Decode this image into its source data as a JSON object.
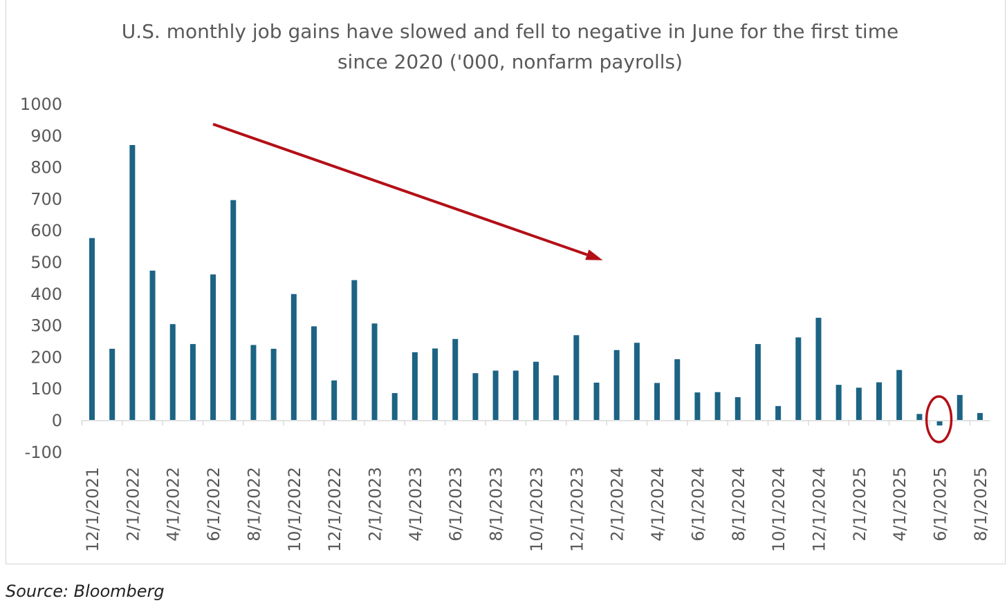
{
  "source": "Source: Bloomberg",
  "colors": {
    "bar": "#1c6384",
    "annotation": "#b30f16",
    "axis_text": "#595959",
    "axis_line": "#d9d9d9"
  },
  "chart_data": {
    "type": "bar",
    "title": "U.S. monthly job gains have slowed and fell to negative in June for the first time since 2020 ('000, nonfarm payrolls)",
    "title_lines": [
      "U.S. monthly job gains have slowed and fell to negative in June for the first time",
      "since 2020 ('000, nonfarm payrolls)"
    ],
    "xlabel": "",
    "ylabel": "",
    "ylim": [
      -100,
      1000
    ],
    "yticks": [
      1000,
      900,
      800,
      700,
      600,
      500,
      400,
      300,
      200,
      100,
      0,
      -100
    ],
    "grid": false,
    "legend": "none",
    "categories": [
      "12/1/2021",
      "1/1/2022",
      "2/1/2022",
      "3/1/2022",
      "4/1/2022",
      "5/1/2022",
      "6/1/2022",
      "7/1/2022",
      "8/1/2022",
      "9/1/2022",
      "10/1/2022",
      "11/1/2022",
      "12/1/2022",
      "1/1/2023",
      "2/1/2023",
      "3/1/2023",
      "4/1/2023",
      "5/1/2023",
      "6/1/2023",
      "7/1/2023",
      "8/1/2023",
      "9/1/2023",
      "10/1/2023",
      "11/1/2023",
      "12/1/2023",
      "1/1/2024",
      "2/1/2024",
      "3/1/2024",
      "4/1/2024",
      "5/1/2024",
      "6/1/2024",
      "7/1/2024",
      "8/1/2024",
      "9/1/2024",
      "10/1/2024",
      "11/1/2024",
      "12/1/2024",
      "1/1/2025",
      "2/1/2025",
      "3/1/2025",
      "4/1/2025",
      "5/1/2025",
      "6/1/2025",
      "7/1/2025",
      "8/1/2025"
    ],
    "tick_labels": [
      "12/1/2021",
      "2/1/2022",
      "4/1/2022",
      "6/1/2022",
      "8/1/2022",
      "10/1/2022",
      "12/1/2022",
      "2/1/2023",
      "4/1/2023",
      "6/1/2023",
      "8/1/2023",
      "10/1/2023",
      "12/1/2023",
      "2/1/2024",
      "4/1/2024",
      "6/1/2024",
      "8/1/2024",
      "10/1/2024",
      "12/1/2024",
      "2/1/2025",
      "4/1/2025",
      "6/1/2025",
      "8/1/2025"
    ],
    "values": [
      575,
      225,
      869,
      472,
      303,
      240,
      460,
      695,
      237,
      225,
      398,
      296,
      125,
      442,
      305,
      85,
      214,
      226,
      256,
      148,
      156,
      156,
      184,
      141,
      268,
      118,
      221,
      244,
      117,
      192,
      87,
      88,
      72,
      240,
      44,
      261,
      323,
      111,
      102,
      119,
      158,
      19,
      -13,
      79,
      22
    ],
    "annotations": [
      {
        "type": "trend-arrow",
        "from": {
          "x": "6/1/2022",
          "y": 935
        },
        "to": {
          "x": "1/1/2024",
          "y": 505
        }
      },
      {
        "type": "circle",
        "x": "6/1/2025",
        "y": 0
      }
    ]
  }
}
